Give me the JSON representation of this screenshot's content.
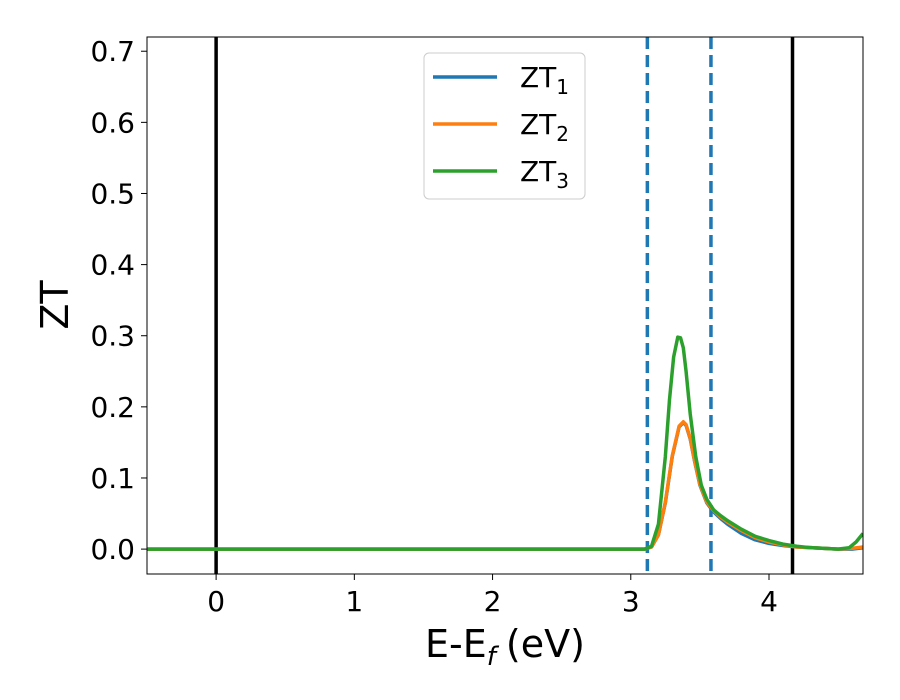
{
  "chart_data": {
    "type": "line",
    "xlabel": "E-E",
    "xlabel_sub": "f",
    "xlabel_unit": "(eV)",
    "ylabel": "ZT",
    "xlim": [
      -0.5,
      4.68
    ],
    "ylim": [
      -0.035,
      0.72
    ],
    "xticks": [
      0,
      1,
      2,
      3,
      4
    ],
    "xtick_labels": [
      "0",
      "1",
      "2",
      "3",
      "4"
    ],
    "yticks": [
      0.0,
      0.1,
      0.2,
      0.3,
      0.4,
      0.5,
      0.6,
      0.7
    ],
    "ytick_labels": [
      "0.0",
      "0.1",
      "0.2",
      "0.3",
      "0.4",
      "0.5",
      "0.6",
      "0.7"
    ],
    "grid": false,
    "legend_position": "top-center",
    "vlines_solid": [
      0.0,
      4.17
    ],
    "vlines_dashed": [
      3.12,
      3.58
    ],
    "series": [
      {
        "name": "ZT",
        "name_sub": "1",
        "color": "#1f77b4",
        "x": [
          -0.5,
          3.1,
          3.15,
          3.2,
          3.25,
          3.3,
          3.35,
          3.38,
          3.4,
          3.43,
          3.46,
          3.5,
          3.55,
          3.6,
          3.65,
          3.7,
          3.8,
          3.9,
          4.0,
          4.1,
          4.2,
          4.3,
          4.4,
          4.5,
          4.6,
          4.68
        ],
        "y": [
          0.0,
          0.0,
          0.003,
          0.02,
          0.065,
          0.13,
          0.172,
          0.178,
          0.174,
          0.155,
          0.125,
          0.09,
          0.065,
          0.052,
          0.043,
          0.035,
          0.022,
          0.013,
          0.008,
          0.005,
          0.003,
          0.002,
          0.001,
          0.0,
          0.0,
          0.002
        ]
      },
      {
        "name": "ZT",
        "name_sub": "2",
        "color": "#ff7f0e",
        "x": [
          -0.5,
          3.1,
          3.15,
          3.2,
          3.25,
          3.3,
          3.35,
          3.38,
          3.4,
          3.43,
          3.46,
          3.5,
          3.55,
          3.6,
          3.65,
          3.7,
          3.8,
          3.9,
          4.0,
          4.1,
          4.2,
          4.3,
          4.4,
          4.5,
          4.6,
          4.68
        ],
        "y": [
          0.0,
          0.0,
          0.003,
          0.02,
          0.066,
          0.131,
          0.173,
          0.179,
          0.175,
          0.156,
          0.126,
          0.091,
          0.066,
          0.054,
          0.045,
          0.038,
          0.026,
          0.016,
          0.01,
          0.006,
          0.003,
          0.002,
          0.001,
          0.0,
          0.001,
          0.003
        ]
      },
      {
        "name": "ZT",
        "name_sub": "3",
        "color": "#2ca02c",
        "x": [
          -0.5,
          3.1,
          3.15,
          3.2,
          3.25,
          3.28,
          3.31,
          3.34,
          3.36,
          3.38,
          3.4,
          3.43,
          3.47,
          3.51,
          3.55,
          3.6,
          3.65,
          3.7,
          3.8,
          3.9,
          4.0,
          4.1,
          4.2,
          4.3,
          4.4,
          4.5,
          4.58,
          4.63,
          4.68
        ],
        "y": [
          0.0,
          0.0,
          0.004,
          0.035,
          0.13,
          0.21,
          0.27,
          0.298,
          0.297,
          0.283,
          0.25,
          0.19,
          0.13,
          0.09,
          0.07,
          0.055,
          0.047,
          0.04,
          0.028,
          0.018,
          0.012,
          0.007,
          0.004,
          0.002,
          0.001,
          0.0,
          0.002,
          0.01,
          0.022
        ]
      }
    ]
  }
}
